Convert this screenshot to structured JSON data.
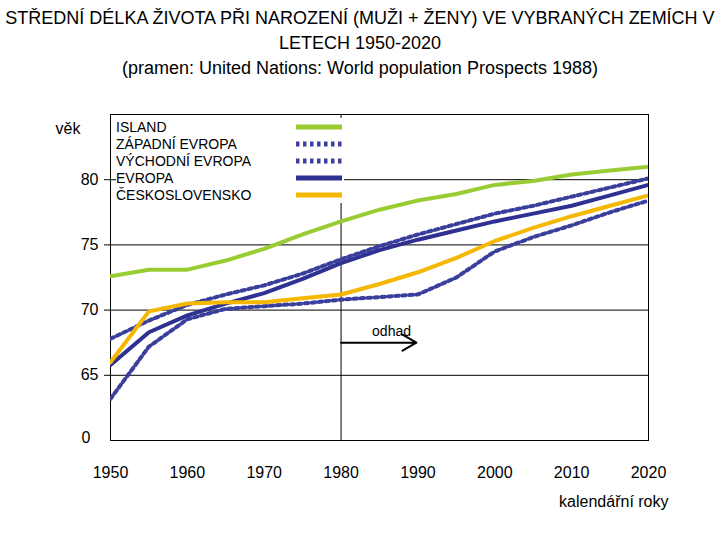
{
  "chart_data": {
    "type": "line",
    "title": "STŘEDNÍ DÉLKA ŽIVOTA PŘI NAROZENÍ (MUŽI + ŽENY) VE VYBRANÝCH ZEMÍCH V LETECH 1950-2020",
    "subtitle": "(pramen: United Nations: World population Prospects 1988)",
    "y_label": "věk",
    "x_label": "kalendářní roky",
    "x": [
      1950,
      1955,
      1960,
      1965,
      1970,
      1975,
      1980,
      1985,
      1990,
      1995,
      2000,
      2005,
      2010,
      2015,
      2020
    ],
    "series": [
      {
        "name": "ISLAND",
        "color": "#99cc33",
        "line_style": "solid",
        "values": [
          72.6,
          73.1,
          73.1,
          73.8,
          74.7,
          75.8,
          76.8,
          77.7,
          78.4,
          78.9,
          79.6,
          79.9,
          80.4,
          80.7,
          81.0
        ]
      },
      {
        "name": "ZÁPADNÍ EVROPA",
        "color": "#3b3f9c",
        "line_style": "dotted",
        "values": [
          67.8,
          69.2,
          70.4,
          71.2,
          71.9,
          72.8,
          73.9,
          74.9,
          75.8,
          76.6,
          77.4,
          78.0,
          78.7,
          79.4,
          80.1
        ]
      },
      {
        "name": "VÝCHODNÍ EVROPA",
        "color": "#3b3f9c",
        "line_style": "dotted",
        "values": [
          63.2,
          67.2,
          69.3,
          70.1,
          70.3,
          70.5,
          70.8,
          71.0,
          71.2,
          72.5,
          74.5,
          75.6,
          76.5,
          77.5,
          78.4
        ]
      },
      {
        "name": "EVROPA",
        "color": "#2e3192",
        "line_style": "solid",
        "values": [
          65.8,
          68.3,
          69.6,
          70.5,
          71.3,
          72.4,
          73.6,
          74.6,
          75.4,
          76.1,
          76.8,
          77.4,
          78.0,
          78.8,
          79.6
        ]
      },
      {
        "name": "ČESKOSLOVENSKO",
        "color": "#f5b800",
        "line_style": "solid",
        "values": [
          66.0,
          69.9,
          70.5,
          70.6,
          70.6,
          70.9,
          71.2,
          72.0,
          72.9,
          74.0,
          75.3,
          76.3,
          77.2,
          78.0,
          78.8
        ]
      }
    ],
    "xlim": [
      1950,
      2020
    ],
    "xticks": [
      1950,
      1960,
      1970,
      1980,
      1990,
      2000,
      2010,
      2020
    ],
    "ylim": [
      60,
      85
    ],
    "yticks": [
      65,
      70,
      75,
      80
    ],
    "grid": true,
    "legend": "top-left",
    "annotations": [
      {
        "text": "odhad",
        "x": 1980
      },
      {
        "text": "0"
      }
    ]
  }
}
